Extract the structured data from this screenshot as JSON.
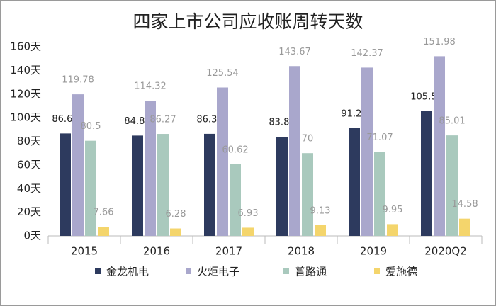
{
  "chart_data": {
    "type": "bar",
    "title": "四家上市公司应收账周转天数",
    "categories": [
      "2015",
      "2016",
      "2017",
      "2018",
      "2019",
      "2020Q2"
    ],
    "series": [
      {
        "name": "金龙机电",
        "color": "#2d3a5e",
        "values": [
          86.66,
          84.86,
          86.35,
          83.84,
          91.22,
          105.53
        ]
      },
      {
        "name": "火炬电子",
        "color": "#a9a7cc",
        "values": [
          119.78,
          114.32,
          125.54,
          143.67,
          142.37,
          151.98
        ]
      },
      {
        "name": "普路通",
        "color": "#a9c9bd",
        "values": [
          80.5,
          86.27,
          60.62,
          70,
          71.07,
          85.01
        ]
      },
      {
        "name": "爱施德",
        "color": "#f4d56c",
        "values": [
          7.66,
          6.28,
          6.93,
          9.13,
          9.95,
          14.58
        ]
      }
    ],
    "ylim": [
      0,
      160
    ],
    "yticks": [
      {
        "value": 0,
        "label": "0天"
      },
      {
        "value": 20,
        "label": "20天"
      },
      {
        "value": 40,
        "label": "40天"
      },
      {
        "value": 60,
        "label": "60天"
      },
      {
        "value": 80,
        "label": "80天"
      },
      {
        "value": 100,
        "label": "100天"
      },
      {
        "value": 120,
        "label": "120天"
      },
      {
        "value": 140,
        "label": "140天"
      },
      {
        "value": 160,
        "label": "160天"
      }
    ],
    "grid": false,
    "legend": "bottom"
  }
}
